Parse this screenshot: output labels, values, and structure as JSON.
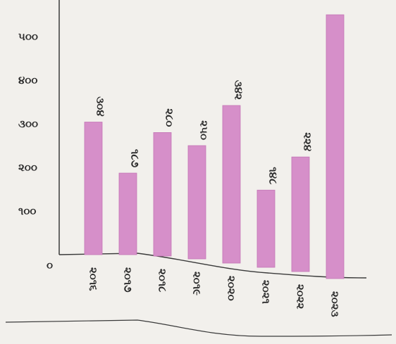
{
  "chart_data": {
    "type": "bar",
    "title": "",
    "xlabel": "",
    "ylabel": "",
    "ylim": [
      0,
      500
    ],
    "yticks": [
      "૦",
      "૧૦૦",
      "૨૦૦",
      "૩૦૦",
      "૪૦૦",
      "૫૦૦"
    ],
    "categories": [
      "૨૦૧૬",
      "૨૦૧૭",
      "૨૦૧૮",
      "૨૦૧૯",
      "૨૦૨૦",
      "૨૦૨૧",
      "૨૦૨૨",
      "૨૦૨૩"
    ],
    "values": [
      304,
      187,
      280,
      250,
      342,
      148,
      224,
      550
    ],
    "value_labels": [
      "૩૦૪",
      "૧૮૭",
      "૨૮૦",
      "૨૫૦",
      "૩૪૨",
      "૧૪૮",
      "૨૨૪",
      ""
    ],
    "colors": {
      "bar": "#d68fc9",
      "bar_edge": "#c476b6",
      "axis": "#3a3a3a",
      "background": "#f2f0ec"
    }
  }
}
